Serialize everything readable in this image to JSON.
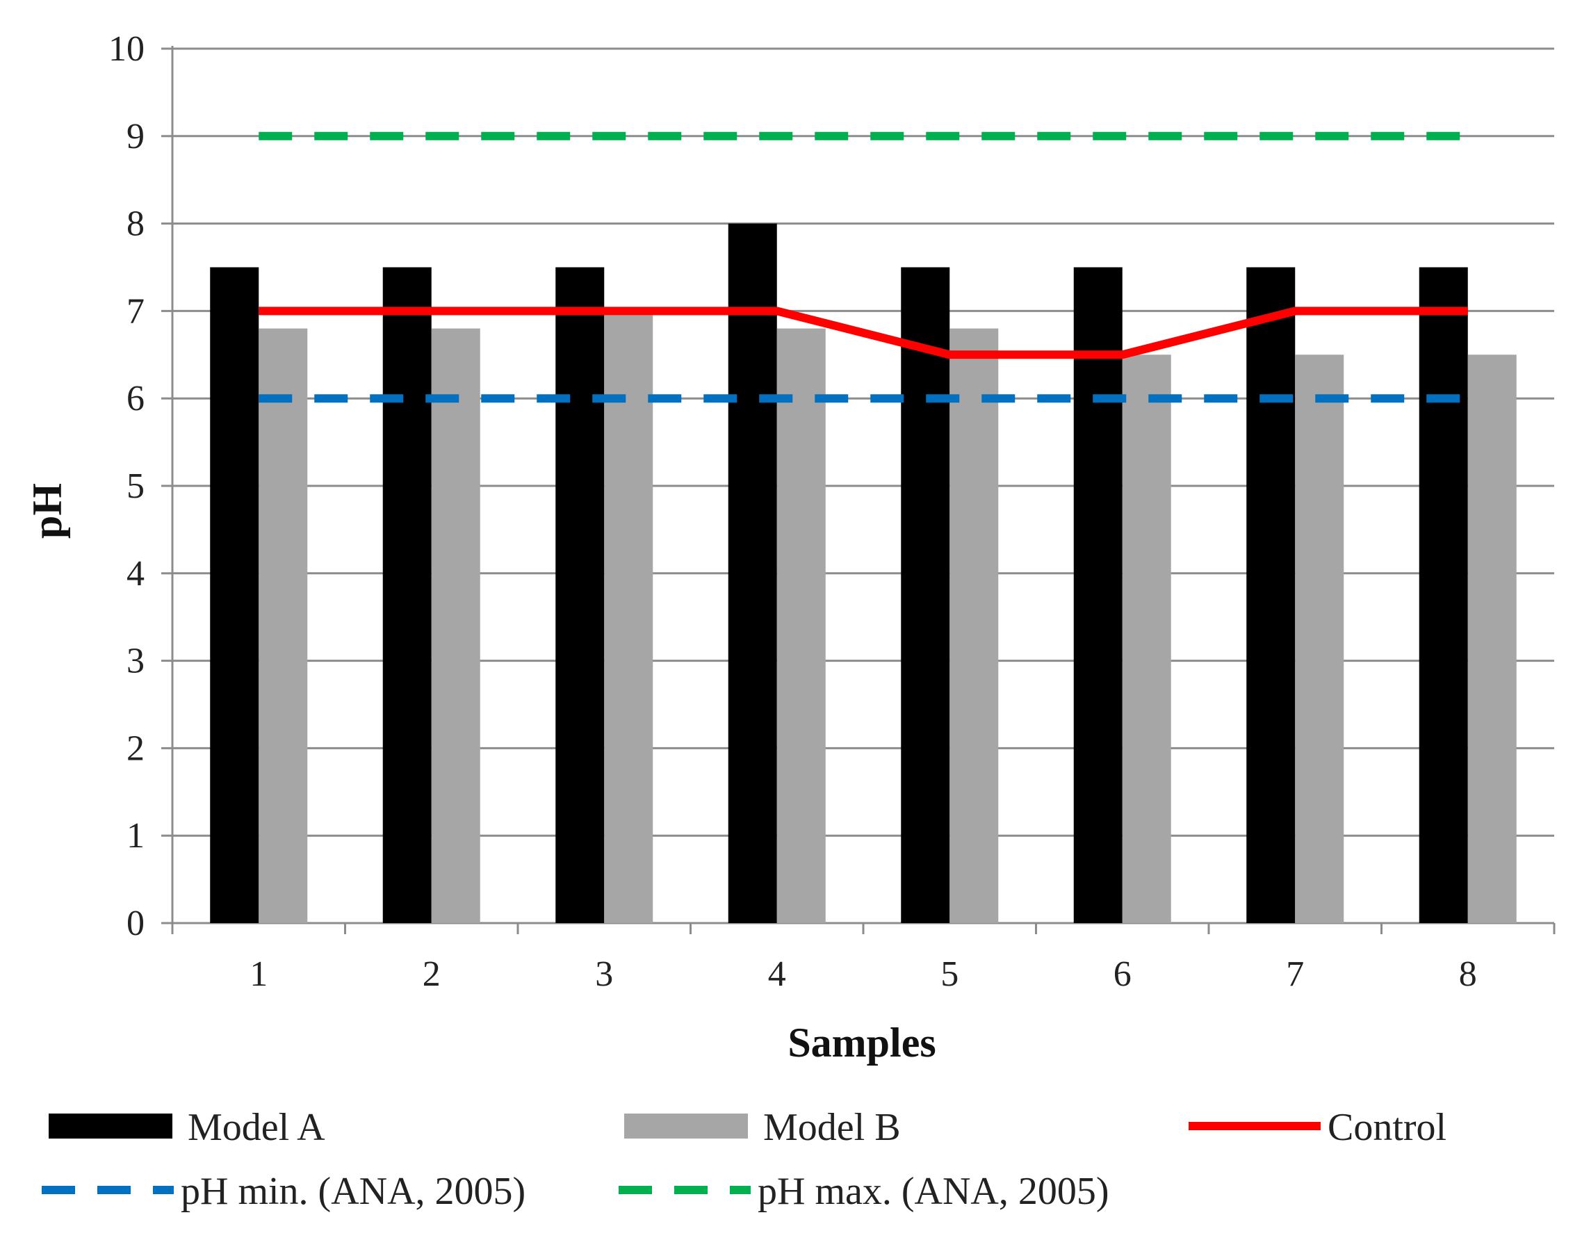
{
  "chart_data": {
    "type": "bar",
    "title": "",
    "xlabel": "Samples",
    "ylabel": "pH",
    "ylim": [
      0,
      10
    ],
    "yticks": [
      "0",
      "1",
      "2",
      "3",
      "4",
      "5",
      "6",
      "7",
      "8",
      "9",
      "10"
    ],
    "categories": [
      "1",
      "2",
      "3",
      "4",
      "5",
      "6",
      "7",
      "8"
    ],
    "grid": true,
    "legend_position": "bottom",
    "series": [
      {
        "name": "Model A",
        "kind": "bar",
        "color": "#000000",
        "values": [
          7.5,
          7.5,
          7.5,
          8.0,
          7.5,
          7.5,
          7.5,
          7.5
        ]
      },
      {
        "name": "Model B",
        "kind": "bar",
        "color": "#a6a6a6",
        "values": [
          6.8,
          6.8,
          7.0,
          6.8,
          6.8,
          6.5,
          6.5,
          6.5
        ]
      },
      {
        "name": "Control",
        "kind": "line",
        "style": "solid",
        "color": "#ff0000",
        "values": [
          7.0,
          7.0,
          7.0,
          7.0,
          6.5,
          6.5,
          7.0,
          7.0
        ]
      },
      {
        "name": "pH min. (ANA, 2005)",
        "kind": "line",
        "style": "dashed",
        "color": "#0070c0",
        "values": [
          6,
          6,
          6,
          6,
          6,
          6,
          6,
          6
        ]
      },
      {
        "name": "pH max. (ANA, 2005)",
        "kind": "line",
        "style": "dashed",
        "color": "#00b050",
        "values": [
          9,
          9,
          9,
          9,
          9,
          9,
          9,
          9
        ]
      }
    ]
  }
}
